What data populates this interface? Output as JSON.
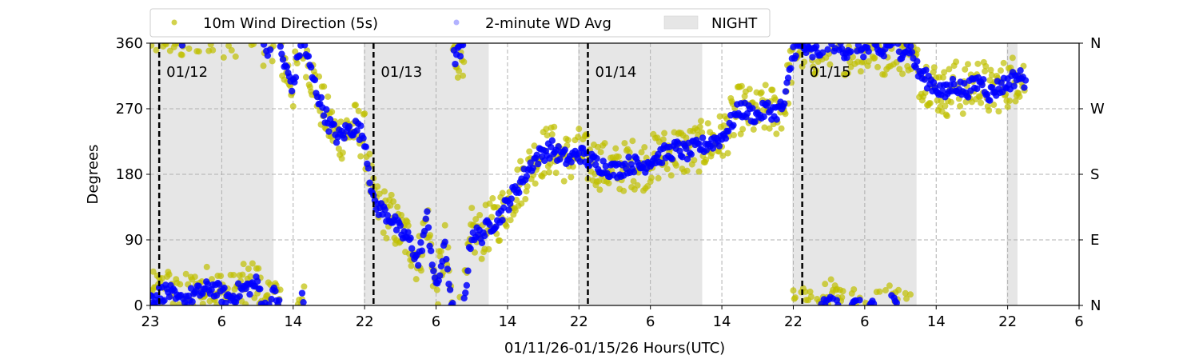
{
  "chart_data": {
    "type": "scatter",
    "xlabel": "01/11/26-01/15/26  Hours(UTC)",
    "ylabel": "Degrees",
    "ylim": [
      0,
      360
    ],
    "xlim_hours": [
      0,
      104
    ],
    "x_ticks": [
      {
        "hour": 0,
        "label": "23"
      },
      {
        "hour": 8,
        "label": "6"
      },
      {
        "hour": 16,
        "label": "14"
      },
      {
        "hour": 24,
        "label": "22"
      },
      {
        "hour": 32,
        "label": "6"
      },
      {
        "hour": 40,
        "label": "14"
      },
      {
        "hour": 48,
        "label": "22"
      },
      {
        "hour": 56,
        "label": "6"
      },
      {
        "hour": 64,
        "label": "14"
      },
      {
        "hour": 72,
        "label": "22"
      },
      {
        "hour": 80,
        "label": "6"
      },
      {
        "hour": 88,
        "label": "14"
      },
      {
        "hour": 96,
        "label": "22"
      },
      {
        "hour": 104,
        "label": "6"
      }
    ],
    "y_ticks": [
      0,
      90,
      180,
      270,
      360
    ],
    "y_right_ticks": [
      {
        "value": 0,
        "label": "N"
      },
      {
        "value": 90,
        "label": "E"
      },
      {
        "value": 180,
        "label": "S"
      },
      {
        "value": 270,
        "label": "W"
      },
      {
        "value": 360,
        "label": "N"
      }
    ],
    "grid": true,
    "legend": {
      "placement": "top-center-outside",
      "entries": [
        "10m Wind Direction (5s)",
        "2-minute WD Avg",
        "NIGHT"
      ]
    },
    "night_periods_hours": [
      [
        0,
        13.8
      ],
      [
        23.9,
        37.9
      ],
      [
        47.9,
        61.8
      ],
      [
        71.9,
        85.8
      ],
      [
        95.9,
        97.1
      ]
    ],
    "day_markers": [
      {
        "hour": 1,
        "label": "01/12"
      },
      {
        "hour": 25,
        "label": "01/13"
      },
      {
        "hour": 49,
        "label": "01/14"
      },
      {
        "hour": 73,
        "label": "01/15"
      }
    ],
    "series": [
      {
        "name": "10m Wind Direction (5s)",
        "color": "#bfbf00",
        "spread_deg": 35
      },
      {
        "name": "2-minute WD Avg",
        "color": "#0000ff",
        "spread_deg": 12
      }
    ],
    "hourly_avg_direction_deg": [
      10,
      15,
      20,
      5,
      10,
      15,
      20,
      25,
      15,
      10,
      20,
      25,
      30,
      350,
      20,
      330,
      300,
      10,
      320,
      280,
      250,
      230,
      240,
      245,
      230,
      140,
      130,
      120,
      100,
      90,
      60,
      120,
      20,
      80,
      340,
      350,
      100,
      95,
      110,
      120,
      140,
      160,
      180,
      200,
      210,
      215,
      205,
      200,
      210,
      200,
      195,
      190,
      185,
      190,
      195,
      190,
      200,
      205,
      210,
      215,
      210,
      215,
      220,
      225,
      230,
      250,
      270,
      265,
      260,
      270,
      265,
      275,
      350,
      355,
      345,
      350,
      5,
      355,
      350,
      0,
      350,
      355,
      345,
      5,
      350,
      355,
      320,
      310,
      300,
      290,
      305,
      295,
      300,
      310,
      290,
      300,
      305,
      315,
      310
    ]
  }
}
